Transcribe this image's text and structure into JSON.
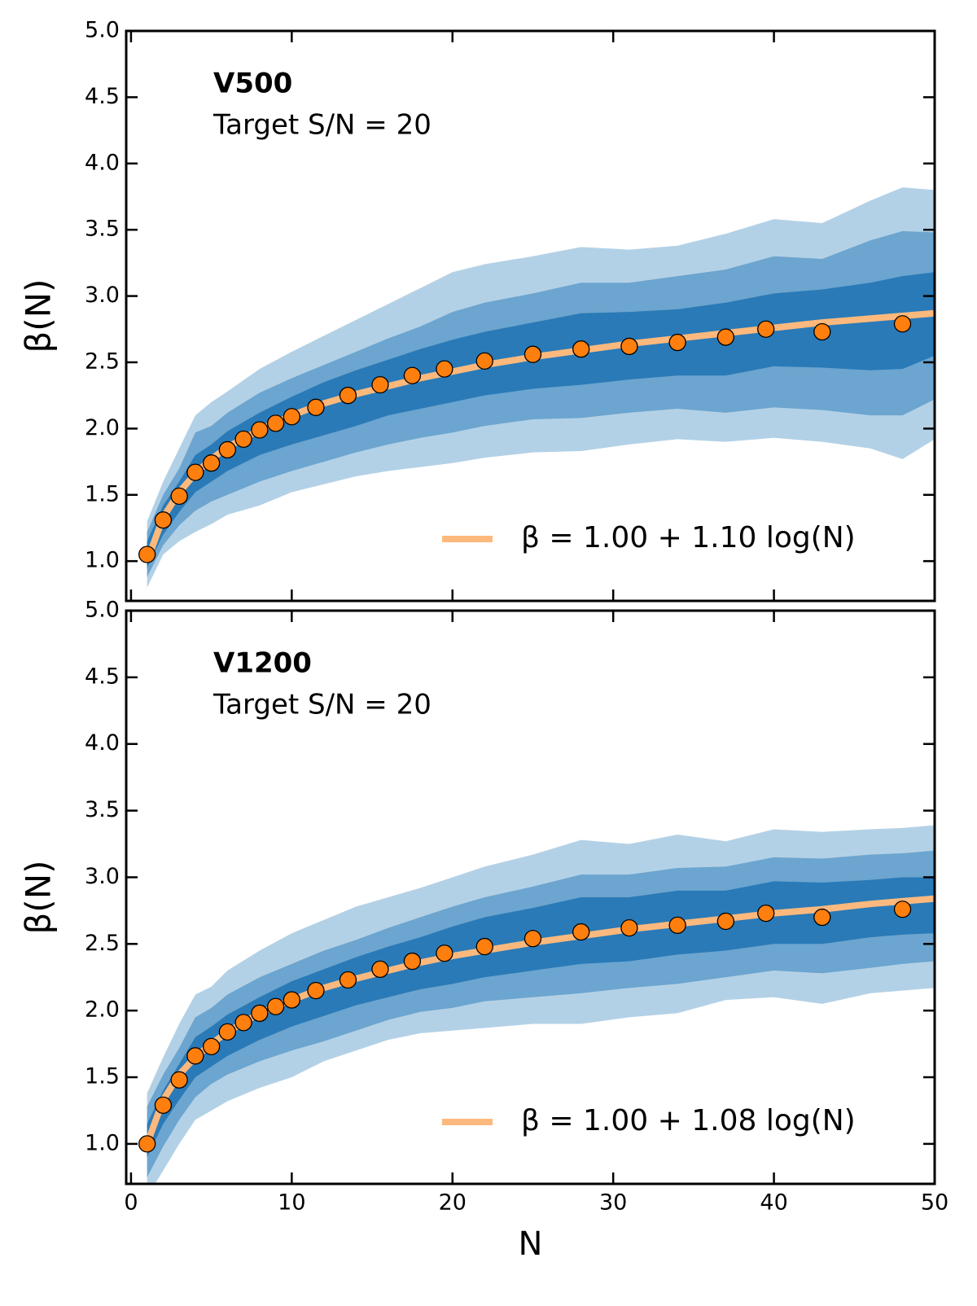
{
  "chart_data": [
    {
      "type": "scatter",
      "title": "V500",
      "annotation": "Target S/N = 20",
      "ylabel": "β(N)",
      "x": [
        1,
        2,
        3,
        4,
        5,
        6,
        7,
        8,
        9,
        10,
        11.5,
        13.5,
        15.5,
        17.5,
        19.5,
        22,
        25,
        28,
        31,
        34,
        37,
        39.5,
        43,
        48
      ],
      "values": [
        1.05,
        1.31,
        1.49,
        1.67,
        1.74,
        1.84,
        1.92,
        1.99,
        2.04,
        2.09,
        2.16,
        2.25,
        2.33,
        2.4,
        2.45,
        2.51,
        2.56,
        2.6,
        2.62,
        2.65,
        2.69,
        2.75,
        2.73,
        2.79
      ],
      "color": "#ff7f0e",
      "curve_x": [
        1,
        2,
        3,
        4,
        5,
        6,
        8,
        10,
        12,
        14,
        16,
        18,
        20,
        22,
        25,
        28,
        31,
        34,
        37,
        40,
        43,
        46,
        48,
        50
      ],
      "bands": [
        {
          "color": "#b3d1e6",
          "lower": [
            0.8,
            1.05,
            1.15,
            1.22,
            1.28,
            1.35,
            1.42,
            1.52,
            1.58,
            1.64,
            1.68,
            1.71,
            1.74,
            1.78,
            1.82,
            1.83,
            1.88,
            1.92,
            1.9,
            1.93,
            1.9,
            1.85,
            1.77,
            1.92
          ],
          "upper": [
            1.3,
            1.6,
            1.85,
            2.1,
            2.2,
            2.28,
            2.45,
            2.58,
            2.7,
            2.82,
            2.94,
            3.06,
            3.18,
            3.24,
            3.3,
            3.37,
            3.35,
            3.38,
            3.47,
            3.58,
            3.55,
            3.72,
            3.82,
            3.8
          ]
        },
        {
          "color": "#6ca5cf",
          "lower": [
            0.88,
            1.12,
            1.27,
            1.38,
            1.45,
            1.5,
            1.6,
            1.68,
            1.75,
            1.82,
            1.88,
            1.93,
            1.97,
            2.02,
            2.07,
            2.08,
            2.12,
            2.15,
            2.12,
            2.16,
            2.14,
            2.1,
            2.1,
            2.22
          ],
          "upper": [
            1.22,
            1.5,
            1.7,
            1.97,
            2.02,
            2.12,
            2.27,
            2.38,
            2.48,
            2.58,
            2.68,
            2.77,
            2.88,
            2.95,
            3.02,
            3.1,
            3.1,
            3.15,
            3.2,
            3.3,
            3.28,
            3.42,
            3.49,
            3.48
          ]
        },
        {
          "color": "#2a7ab7",
          "lower": [
            0.95,
            1.2,
            1.37,
            1.52,
            1.6,
            1.68,
            1.8,
            1.88,
            1.95,
            2.02,
            2.1,
            2.15,
            2.2,
            2.25,
            2.3,
            2.33,
            2.37,
            2.4,
            2.4,
            2.47,
            2.46,
            2.44,
            2.45,
            2.55
          ],
          "upper": [
            1.15,
            1.42,
            1.6,
            1.8,
            1.88,
            1.98,
            2.12,
            2.24,
            2.35,
            2.44,
            2.52,
            2.6,
            2.67,
            2.73,
            2.8,
            2.87,
            2.88,
            2.9,
            2.95,
            3.02,
            3.05,
            3.1,
            3.15,
            3.18
          ]
        }
      ],
      "fit": {
        "name": "β = 1.00 + 1.10 log(N)",
        "color": "#fdb97d",
        "values": [
          1.0,
          1.33,
          1.52,
          1.66,
          1.77,
          1.86,
          1.99,
          2.1,
          2.19,
          2.26,
          2.32,
          2.38,
          2.43,
          2.48,
          2.54,
          2.59,
          2.64,
          2.68,
          2.72,
          2.76,
          2.8,
          2.83,
          2.85,
          2.87
        ]
      },
      "legend": "lower right",
      "xlim": [
        -0.3,
        50
      ],
      "xticks": [
        0,
        10,
        20,
        30,
        40,
        50
      ],
      "show_xtick_labels": false,
      "ylim": [
        0.7,
        5
      ],
      "yticks": [
        {
          "value": 1,
          "label": "1.0"
        },
        1.5,
        {
          "value": 2,
          "label": "2.0"
        },
        2.5,
        {
          "value": 3,
          "label": "3.0"
        },
        3.5,
        {
          "value": 4,
          "label": "4.0"
        },
        4.5,
        {
          "value": 5,
          "label": "5.0"
        }
      ]
    },
    {
      "type": "scatter",
      "title": "V1200",
      "annotation": "Target S/N = 20",
      "ylabel": "β(N)",
      "xlabel": "N",
      "x": [
        1,
        2,
        3,
        4,
        5,
        6,
        7,
        8,
        9,
        10,
        11.5,
        13.5,
        15.5,
        17.5,
        19.5,
        22,
        25,
        28,
        31,
        34,
        37,
        39.5,
        43,
        48
      ],
      "values": [
        1.0,
        1.29,
        1.48,
        1.66,
        1.73,
        1.84,
        1.91,
        1.98,
        2.03,
        2.08,
        2.15,
        2.23,
        2.31,
        2.37,
        2.43,
        2.48,
        2.54,
        2.59,
        2.62,
        2.64,
        2.67,
        2.73,
        2.7,
        2.76
      ],
      "color": "#ff7f0e",
      "curve_x": [
        1,
        2,
        3,
        4,
        5,
        6,
        8,
        10,
        12,
        14,
        16,
        18,
        20,
        22,
        25,
        28,
        31,
        34,
        37,
        40,
        43,
        46,
        48,
        50
      ],
      "bands": [
        {
          "color": "#b3d1e6",
          "lower": [
            0.6,
            0.8,
            1.0,
            1.18,
            1.25,
            1.32,
            1.42,
            1.5,
            1.62,
            1.7,
            1.78,
            1.83,
            1.85,
            1.87,
            1.9,
            1.9,
            1.95,
            1.98,
            2.08,
            2.1,
            2.05,
            2.13,
            2.15,
            2.17
          ],
          "upper": [
            1.38,
            1.65,
            1.9,
            2.12,
            2.18,
            2.3,
            2.45,
            2.58,
            2.68,
            2.78,
            2.85,
            2.92,
            3.0,
            3.08,
            3.17,
            3.28,
            3.25,
            3.32,
            3.27,
            3.36,
            3.34,
            3.36,
            3.37,
            3.39
          ]
        },
        {
          "color": "#6ca5cf",
          "lower": [
            0.75,
            0.98,
            1.18,
            1.35,
            1.45,
            1.52,
            1.62,
            1.7,
            1.77,
            1.85,
            1.93,
            1.99,
            2.02,
            2.07,
            2.1,
            2.13,
            2.17,
            2.2,
            2.25,
            2.3,
            2.28,
            2.32,
            2.35,
            2.37
          ],
          "upper": [
            1.28,
            1.52,
            1.72,
            1.95,
            2.02,
            2.12,
            2.25,
            2.35,
            2.45,
            2.53,
            2.62,
            2.7,
            2.78,
            2.85,
            2.93,
            3.02,
            3.02,
            3.07,
            3.08,
            3.15,
            3.14,
            3.17,
            3.18,
            3.2
          ]
        },
        {
          "color": "#2a7ab7",
          "lower": [
            0.9,
            1.15,
            1.33,
            1.5,
            1.58,
            1.66,
            1.78,
            1.88,
            1.96,
            2.04,
            2.1,
            2.16,
            2.2,
            2.25,
            2.3,
            2.35,
            2.37,
            2.42,
            2.45,
            2.5,
            2.5,
            2.55,
            2.57,
            2.58
          ],
          "upper": [
            1.15,
            1.4,
            1.6,
            1.8,
            1.88,
            1.97,
            2.1,
            2.22,
            2.31,
            2.4,
            2.48,
            2.55,
            2.63,
            2.7,
            2.77,
            2.85,
            2.85,
            2.9,
            2.9,
            2.97,
            2.96,
            2.98,
            3.0,
            3.0
          ]
        }
      ],
      "fit": {
        "name": "β = 1.00 + 1.08 log(N)",
        "color": "#fdb97d",
        "values": [
          1.0,
          1.33,
          1.52,
          1.65,
          1.75,
          1.84,
          1.98,
          2.08,
          2.17,
          2.24,
          2.3,
          2.36,
          2.41,
          2.45,
          2.51,
          2.56,
          2.61,
          2.65,
          2.69,
          2.73,
          2.76,
          2.8,
          2.82,
          2.84
        ]
      },
      "legend": "lower right",
      "xlim": [
        -0.3,
        50
      ],
      "xticks": [
        0,
        10,
        20,
        30,
        40,
        50
      ],
      "show_xtick_labels": true,
      "ylim": [
        0.7,
        5
      ],
      "yticks": [
        {
          "value": 1,
          "label": "1.0"
        },
        1.5,
        {
          "value": 2,
          "label": "2.0"
        },
        2.5,
        {
          "value": 3,
          "label": "3.0"
        },
        3.5,
        {
          "value": 4,
          "label": "4.0"
        },
        4.5,
        {
          "value": 5,
          "label": "5.0"
        }
      ]
    }
  ]
}
